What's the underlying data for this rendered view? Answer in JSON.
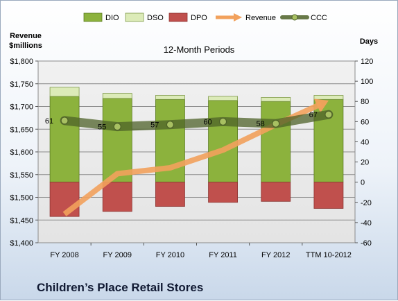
{
  "chart_data": {
    "type": "bar",
    "title": "12-Month Periods",
    "footer": "Children’s Place Retail Stores",
    "categories": [
      "FY 2008",
      "FY 2009",
      "FY 2010",
      "FY 2011",
      "FY 2012",
      "TTM 10-2012"
    ],
    "left_axis": {
      "label_line1": "Revenue",
      "label_line2": "$millions",
      "ylim": [
        1400,
        1800
      ],
      "ticks": [
        "$1,400",
        "$1,450",
        "$1,500",
        "$1,550",
        "$1,600",
        "$1,650",
        "$1,700",
        "$1,750",
        "$1,800"
      ]
    },
    "right_axis": {
      "label": "Days",
      "ylim": [
        -60,
        120
      ],
      "ticks": [
        "-60",
        "-40",
        "-20",
        "0",
        "20",
        "40",
        "60",
        "80",
        "100",
        "120"
      ]
    },
    "grid": true,
    "legend_position": "top",
    "series": [
      {
        "name": "DIO",
        "kind": "stacked-bar",
        "axis": "right",
        "values": [
          85,
          83,
          82,
          81,
          80,
          82
        ],
        "color": "#8cb23d"
      },
      {
        "name": "DSO",
        "kind": "stacked-bar",
        "axis": "right",
        "values": [
          9,
          5,
          4,
          4,
          4,
          4
        ],
        "color": "#dcebb8"
      },
      {
        "name": "DPO",
        "kind": "stacked-bar",
        "axis": "right",
        "values": [
          -34,
          -29,
          -24,
          -20,
          -19,
          -26
        ],
        "color": "#c0504d"
      },
      {
        "name": "Revenue",
        "kind": "arrow-line",
        "axis": "left",
        "values": [
          1463,
          1552,
          1565,
          1604,
          1660,
          1713
        ],
        "color": "#f2a15c"
      },
      {
        "name": "CCC",
        "kind": "line-marker",
        "axis": "right",
        "values": [
          61,
          55,
          57,
          60,
          58,
          67
        ],
        "labels": [
          "61",
          "55",
          "57",
          "60",
          "58",
          "67"
        ],
        "color": "#4e6228"
      }
    ]
  }
}
